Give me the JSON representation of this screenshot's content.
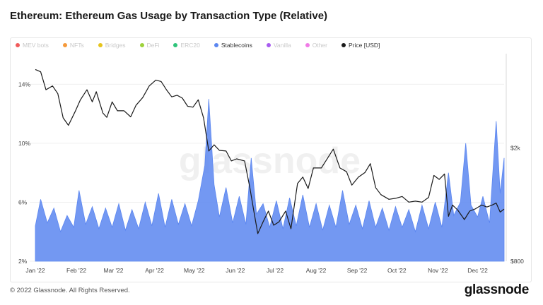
{
  "page": {
    "title": "Ethereum: Ethereum Gas Usage by Transaction Type (Relative)",
    "footer": "© 2022 Glassnode. All Rights Reserved.",
    "brand": "glassnode",
    "watermark": "glassnode"
  },
  "legend": [
    {
      "label": "MEV bots",
      "color": "#f05b5b",
      "active": false
    },
    {
      "label": "NFTs",
      "color": "#f59a3b",
      "active": false
    },
    {
      "label": "Bridges",
      "color": "#e6c41c",
      "active": false
    },
    {
      "label": "DeFi",
      "color": "#9ed23c",
      "active": false
    },
    {
      "label": "ERC20",
      "color": "#2fc47a",
      "active": false
    },
    {
      "label": "Stablecoins",
      "color": "#5b86f0",
      "active": true
    },
    {
      "label": "Vanilla",
      "color": "#a85cf0",
      "active": false
    },
    {
      "label": "Other",
      "color": "#f07be6",
      "active": false
    },
    {
      "label": "Price [USD]",
      "color": "#1a1a1a",
      "active": true
    }
  ],
  "chart_data": {
    "type": "area",
    "y_left": {
      "ticks": [
        "2%",
        "6%",
        "10%",
        "14%"
      ],
      "values": [
        2,
        6,
        10,
        14
      ],
      "range": [
        2,
        15.5
      ]
    },
    "y_right": {
      "ticks": [
        "$800",
        "$2k"
      ],
      "values": [
        800,
        2000
      ],
      "scale": "log",
      "range": [
        800,
        4000
      ]
    },
    "x_ticks": [
      "Jan '22",
      "Feb '22",
      "Mar '22",
      "Apr '22",
      "May '22",
      "Jun '22",
      "Jul '22",
      "Aug '22",
      "Sep '22",
      "Oct '22",
      "Nov '22",
      "Dec '22"
    ],
    "x_range": [
      "2022-01-01",
      "2022-12-21"
    ],
    "series": [
      {
        "name": "Stablecoins",
        "color": "#5b86f0",
        "points": [
          [
            "2022-01-01",
            4.4
          ],
          [
            "2022-01-05",
            6.2
          ],
          [
            "2022-01-10",
            4.6
          ],
          [
            "2022-01-15",
            5.6
          ],
          [
            "2022-01-20",
            4.0
          ],
          [
            "2022-01-25",
            5.1
          ],
          [
            "2022-01-30",
            4.3
          ],
          [
            "2022-02-03",
            6.8
          ],
          [
            "2022-02-08",
            4.5
          ],
          [
            "2022-02-13",
            5.7
          ],
          [
            "2022-02-18",
            4.2
          ],
          [
            "2022-02-23",
            5.6
          ],
          [
            "2022-02-28",
            4.3
          ],
          [
            "2022-03-05",
            5.9
          ],
          [
            "2022-03-10",
            4.1
          ],
          [
            "2022-03-15",
            5.5
          ],
          [
            "2022-03-20",
            4.2
          ],
          [
            "2022-03-25",
            6.0
          ],
          [
            "2022-03-30",
            4.4
          ],
          [
            "2022-04-04",
            6.6
          ],
          [
            "2022-04-09",
            4.3
          ],
          [
            "2022-04-14",
            6.2
          ],
          [
            "2022-04-19",
            4.5
          ],
          [
            "2022-04-24",
            5.9
          ],
          [
            "2022-04-29",
            4.4
          ],
          [
            "2022-05-04",
            6.1
          ],
          [
            "2022-05-09",
            8.5
          ],
          [
            "2022-05-12",
            13.0
          ],
          [
            "2022-05-16",
            7.2
          ],
          [
            "2022-05-20",
            5.0
          ],
          [
            "2022-05-25",
            7.0
          ],
          [
            "2022-05-30",
            4.6
          ],
          [
            "2022-06-04",
            6.4
          ],
          [
            "2022-06-09",
            4.5
          ],
          [
            "2022-06-13",
            9.0
          ],
          [
            "2022-06-17",
            5.2
          ],
          [
            "2022-06-22",
            5.9
          ],
          [
            "2022-06-27",
            4.3
          ],
          [
            "2022-07-02",
            6.1
          ],
          [
            "2022-07-07",
            4.2
          ],
          [
            "2022-07-12",
            6.3
          ],
          [
            "2022-07-17",
            4.4
          ],
          [
            "2022-07-22",
            6.5
          ],
          [
            "2022-07-27",
            4.3
          ],
          [
            "2022-08-01",
            5.9
          ],
          [
            "2022-08-06",
            4.1
          ],
          [
            "2022-08-11",
            5.8
          ],
          [
            "2022-08-16",
            4.3
          ],
          [
            "2022-08-21",
            6.8
          ],
          [
            "2022-08-26",
            4.5
          ],
          [
            "2022-08-31",
            5.8
          ],
          [
            "2022-09-05",
            4.2
          ],
          [
            "2022-09-10",
            6.1
          ],
          [
            "2022-09-15",
            4.3
          ],
          [
            "2022-09-20",
            5.6
          ],
          [
            "2022-09-25",
            4.1
          ],
          [
            "2022-09-30",
            5.7
          ],
          [
            "2022-10-05",
            4.3
          ],
          [
            "2022-10-10",
            5.5
          ],
          [
            "2022-10-15",
            4.0
          ],
          [
            "2022-10-20",
            5.8
          ],
          [
            "2022-10-25",
            4.2
          ],
          [
            "2022-10-30",
            6.0
          ],
          [
            "2022-11-04",
            4.3
          ],
          [
            "2022-11-09",
            8.0
          ],
          [
            "2022-11-13",
            5.1
          ],
          [
            "2022-11-18",
            6.0
          ],
          [
            "2022-11-22",
            10.0
          ],
          [
            "2022-11-26",
            5.8
          ],
          [
            "2022-12-01",
            5.0
          ],
          [
            "2022-12-05",
            6.4
          ],
          [
            "2022-12-10",
            4.6
          ],
          [
            "2022-12-15",
            11.5
          ],
          [
            "2022-12-18",
            6.6
          ],
          [
            "2022-12-21",
            9.0
          ]
        ]
      },
      {
        "name": "Price [USD]",
        "color": "#1a1a1a",
        "axis": "right",
        "points": [
          [
            "2022-01-01",
            3770
          ],
          [
            "2022-01-05",
            3700
          ],
          [
            "2022-01-09",
            3200
          ],
          [
            "2022-01-14",
            3300
          ],
          [
            "2022-01-18",
            3100
          ],
          [
            "2022-01-22",
            2550
          ],
          [
            "2022-01-26",
            2400
          ],
          [
            "2022-01-31",
            2680
          ],
          [
            "2022-02-04",
            2950
          ],
          [
            "2022-02-09",
            3200
          ],
          [
            "2022-02-13",
            2900
          ],
          [
            "2022-02-16",
            3150
          ],
          [
            "2022-02-21",
            2650
          ],
          [
            "2022-02-24",
            2560
          ],
          [
            "2022-02-28",
            2900
          ],
          [
            "2022-03-04",
            2700
          ],
          [
            "2022-03-09",
            2700
          ],
          [
            "2022-03-14",
            2570
          ],
          [
            "2022-03-18",
            2820
          ],
          [
            "2022-03-23",
            3000
          ],
          [
            "2022-03-28",
            3300
          ],
          [
            "2022-04-02",
            3460
          ],
          [
            "2022-04-06",
            3420
          ],
          [
            "2022-04-10",
            3200
          ],
          [
            "2022-04-14",
            3020
          ],
          [
            "2022-04-18",
            3060
          ],
          [
            "2022-04-22",
            2990
          ],
          [
            "2022-04-26",
            2800
          ],
          [
            "2022-04-30",
            2780
          ],
          [
            "2022-05-04",
            2950
          ],
          [
            "2022-05-08",
            2550
          ],
          [
            "2022-05-12",
            1950
          ],
          [
            "2022-05-16",
            2050
          ],
          [
            "2022-05-20",
            1960
          ],
          [
            "2022-05-25",
            1950
          ],
          [
            "2022-05-29",
            1800
          ],
          [
            "2022-06-02",
            1830
          ],
          [
            "2022-06-08",
            1800
          ],
          [
            "2022-06-12",
            1450
          ],
          [
            "2022-06-15",
            1200
          ],
          [
            "2022-06-18",
            1000
          ],
          [
            "2022-06-22",
            1100
          ],
          [
            "2022-06-26",
            1200
          ],
          [
            "2022-06-30",
            1070
          ],
          [
            "2022-07-04",
            1100
          ],
          [
            "2022-07-09",
            1200
          ],
          [
            "2022-07-13",
            1040
          ],
          [
            "2022-07-18",
            1500
          ],
          [
            "2022-07-22",
            1580
          ],
          [
            "2022-07-26",
            1440
          ],
          [
            "2022-07-30",
            1700
          ],
          [
            "2022-08-05",
            1700
          ],
          [
            "2022-08-10",
            1850
          ],
          [
            "2022-08-14",
            1980
          ],
          [
            "2022-08-19",
            1700
          ],
          [
            "2022-08-24",
            1650
          ],
          [
            "2022-08-28",
            1480
          ],
          [
            "2022-09-02",
            1580
          ],
          [
            "2022-09-07",
            1640
          ],
          [
            "2022-09-11",
            1760
          ],
          [
            "2022-09-15",
            1450
          ],
          [
            "2022-09-19",
            1370
          ],
          [
            "2022-09-25",
            1320
          ],
          [
            "2022-09-30",
            1330
          ],
          [
            "2022-10-05",
            1350
          ],
          [
            "2022-10-10",
            1290
          ],
          [
            "2022-10-15",
            1300
          ],
          [
            "2022-10-20",
            1290
          ],
          [
            "2022-10-25",
            1340
          ],
          [
            "2022-10-29",
            1600
          ],
          [
            "2022-11-02",
            1550
          ],
          [
            "2022-11-06",
            1620
          ],
          [
            "2022-11-09",
            1150
          ],
          [
            "2022-11-12",
            1260
          ],
          [
            "2022-11-16",
            1210
          ],
          [
            "2022-11-21",
            1120
          ],
          [
            "2022-11-25",
            1200
          ],
          [
            "2022-11-29",
            1220
          ],
          [
            "2022-12-04",
            1260
          ],
          [
            "2022-12-08",
            1240
          ],
          [
            "2022-12-12",
            1260
          ],
          [
            "2022-12-15",
            1280
          ],
          [
            "2022-12-18",
            1190
          ],
          [
            "2022-12-21",
            1220
          ]
        ]
      }
    ]
  }
}
